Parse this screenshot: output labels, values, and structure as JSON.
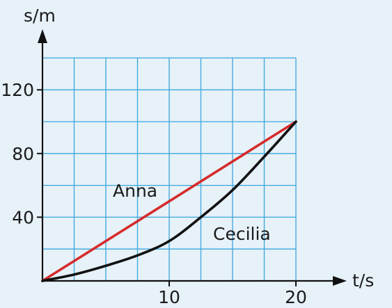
{
  "chart_data": {
    "type": "line",
    "xlabel": "t/s",
    "ylabel": "s/m",
    "xlim": [
      0,
      20
    ],
    "ylim": [
      0,
      140
    ],
    "grid": true,
    "x_ticks": [
      10,
      20
    ],
    "y_ticks": [
      40,
      80,
      120
    ],
    "x_tick_labels": [
      "10",
      "20"
    ],
    "y_tick_labels": [
      "40",
      "80",
      "120"
    ],
    "series": [
      {
        "name": "Anna",
        "color": "#d62b2b",
        "x": [
          0,
          20
        ],
        "y": [
          0,
          100
        ]
      },
      {
        "name": "Cecilia",
        "color": "#111111",
        "x": [
          0,
          2.5,
          5,
          7.5,
          10,
          12.5,
          15,
          17.5,
          20
        ],
        "y": [
          0,
          4,
          9.5,
          16,
          25,
          40,
          57,
          78,
          100
        ]
      }
    ]
  }
}
